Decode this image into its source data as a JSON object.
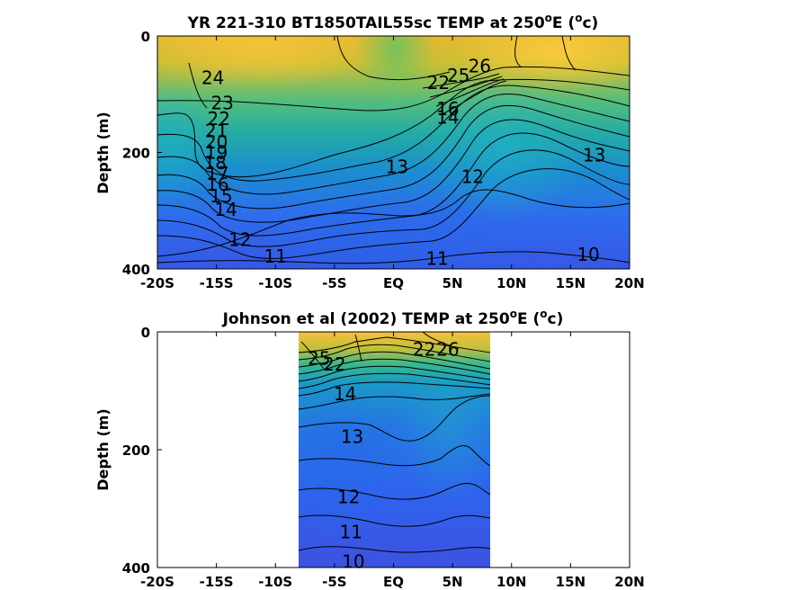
{
  "chart_data": [
    {
      "type": "contour",
      "title": "YR 221-310 BT1850TAIL55sc TEMP at 250",
      "title_sup": "o",
      "title_suffix": "E (",
      "title_unit_sup": "o",
      "title_unit": "c)",
      "xlabel": "",
      "ylabel": "Depth (m)",
      "x_ticks": [
        "-20S",
        "-15S",
        "-10S",
        "-5S",
        "EQ",
        "5N",
        "10N",
        "15N",
        "20N"
      ],
      "x_tick_values": [
        -20,
        -15,
        -10,
        -5,
        0,
        5,
        10,
        15,
        20
      ],
      "y_ticks": [
        "0",
        "200",
        "400"
      ],
      "y_tick_values": [
        0,
        200,
        400
      ],
      "xlim": [
        -20,
        20
      ],
      "ylim": [
        0,
        400
      ],
      "y_reversed": true,
      "colormap": "parula",
      "data_coverage_lat": [
        -20,
        20
      ],
      "contour_labels": [
        {
          "text": "24",
          "lat": -15.3,
          "depth": 72
        },
        {
          "text": "23",
          "lat": -14.5,
          "depth": 115
        },
        {
          "text": "22",
          "lat": -14.8,
          "depth": 142
        },
        {
          "text": "21",
          "lat": -15.0,
          "depth": 163
        },
        {
          "text": "20",
          "lat": -15.0,
          "depth": 182
        },
        {
          "text": "19",
          "lat": -15.0,
          "depth": 200
        },
        {
          "text": "18",
          "lat": -15.1,
          "depth": 218
        },
        {
          "text": "17",
          "lat": -14.9,
          "depth": 236
        },
        {
          "text": "16",
          "lat": -14.9,
          "depth": 255
        },
        {
          "text": "15",
          "lat": -14.6,
          "depth": 275
        },
        {
          "text": "14",
          "lat": -14.2,
          "depth": 298
        },
        {
          "text": "13",
          "lat": 0.3,
          "depth": 225
        },
        {
          "text": "12",
          "lat": -13.0,
          "depth": 350
        },
        {
          "text": "12",
          "lat": 6.7,
          "depth": 242
        },
        {
          "text": "13",
          "lat": 17.0,
          "depth": 205
        },
        {
          "text": "11",
          "lat": -10.0,
          "depth": 378
        },
        {
          "text": "11",
          "lat": 3.7,
          "depth": 382
        },
        {
          "text": "10",
          "lat": 16.5,
          "depth": 375
        },
        {
          "text": "22",
          "lat": 3.8,
          "depth": 80
        },
        {
          "text": "25",
          "lat": 5.5,
          "depth": 68
        },
        {
          "text": "26",
          "lat": 7.3,
          "depth": 52
        },
        {
          "text": "16",
          "lat": 4.6,
          "depth": 125
        },
        {
          "text": "14",
          "lat": 4.6,
          "depth": 140
        }
      ]
    },
    {
      "type": "contour",
      "title": "Johnson et al (2002) TEMP at 250",
      "title_sup": "o",
      "title_suffix": "E (",
      "title_unit_sup": "o",
      "title_unit": "c)",
      "xlabel": "",
      "ylabel": "Depth (m)",
      "x_ticks": [
        "-20S",
        "-15S",
        "-10S",
        "-5S",
        "EQ",
        "5N",
        "10N",
        "15N",
        "20N"
      ],
      "x_tick_values": [
        -20,
        -15,
        -10,
        -5,
        0,
        5,
        10,
        15,
        20
      ],
      "y_ticks": [
        "0",
        "200",
        "400"
      ],
      "y_tick_values": [
        0,
        200,
        400
      ],
      "xlim": [
        -20,
        20
      ],
      "ylim": [
        0,
        400
      ],
      "y_reversed": true,
      "colormap": "parula",
      "data_coverage_lat": [
        -8,
        8.3
      ],
      "contour_labels": [
        {
          "text": "25",
          "lat": -6.3,
          "depth": 45
        },
        {
          "text": "22",
          "lat": -5.0,
          "depth": 55
        },
        {
          "text": "14",
          "lat": -4.1,
          "depth": 105
        },
        {
          "text": "13",
          "lat": -3.5,
          "depth": 178
        },
        {
          "text": "22",
          "lat": 2.6,
          "depth": 30
        },
        {
          "text": "26",
          "lat": 4.6,
          "depth": 30
        },
        {
          "text": "12",
          "lat": -3.8,
          "depth": 280
        },
        {
          "text": "11",
          "lat": -3.6,
          "depth": 340
        },
        {
          "text": "10",
          "lat": -3.4,
          "depth": 390
        }
      ]
    }
  ]
}
